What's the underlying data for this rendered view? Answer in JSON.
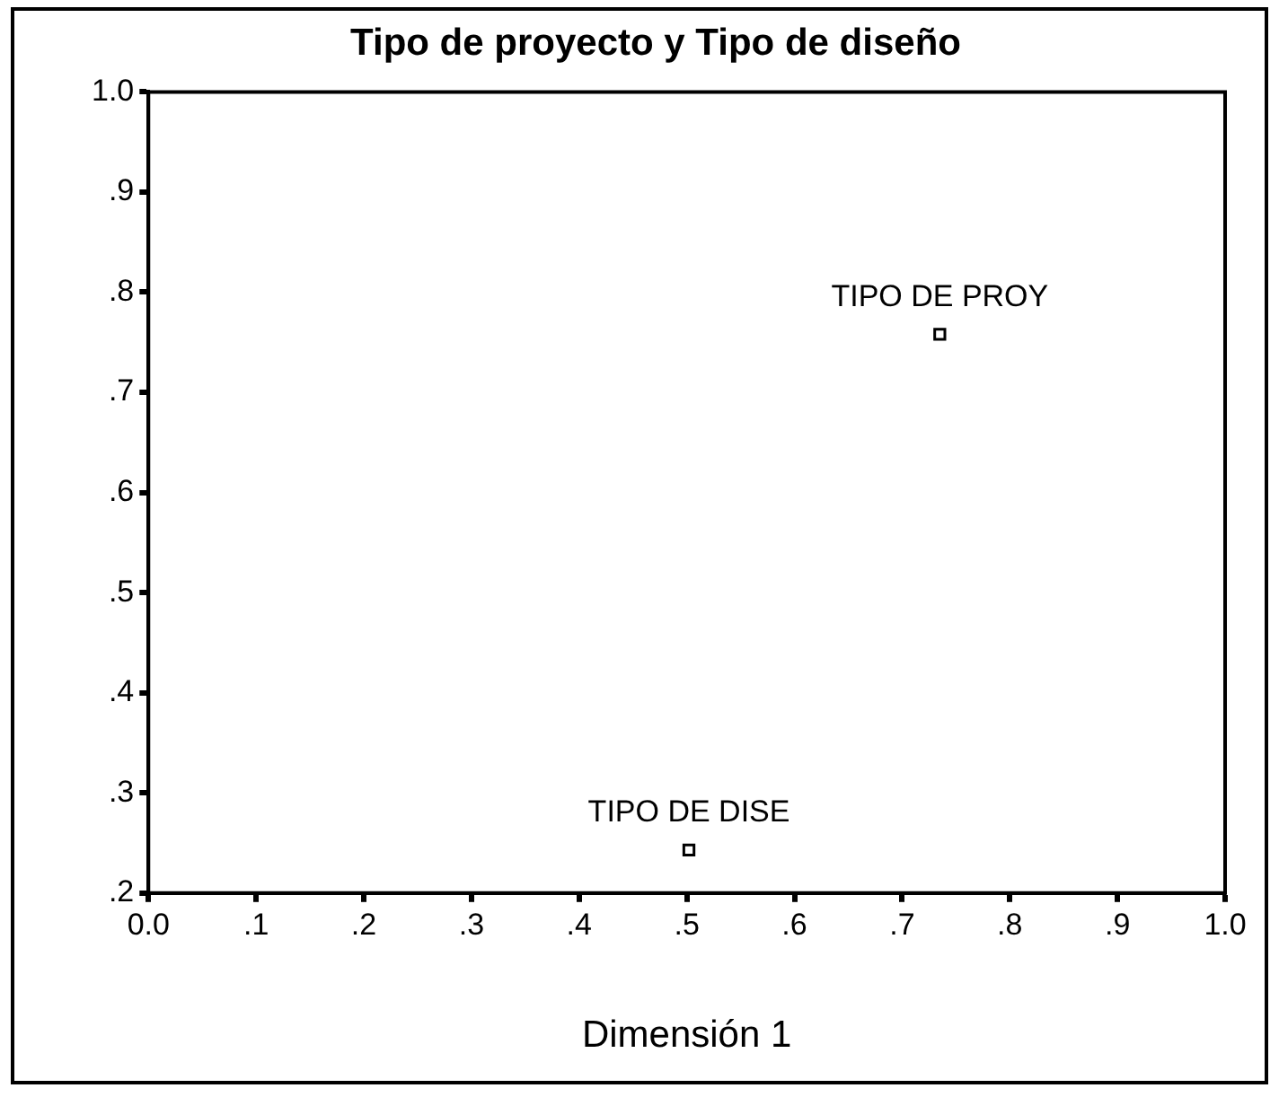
{
  "chart_data": {
    "type": "scatter",
    "title": "Tipo de proyecto y Tipo de diseño",
    "xlabel": "Dimensión 1",
    "series": [
      {
        "name": "TIPO DE PROY",
        "color": "#000000",
        "x": [
          0.735
        ],
        "values": [
          0.758
        ]
      },
      {
        "name": "TIPO DE DISE",
        "color": "#000000",
        "x": [
          0.502
        ],
        "values": [
          0.243
        ]
      }
    ],
    "xlim": [
      0,
      1
    ],
    "ylim": [
      0.2,
      1
    ],
    "xticks": [
      {
        "value": 0,
        "label": "0.0"
      },
      {
        "value": 0.1,
        "label": ".1"
      },
      {
        "value": 0.2,
        "label": ".2"
      },
      {
        "value": 0.3,
        "label": ".3"
      },
      {
        "value": 0.4,
        "label": ".4"
      },
      {
        "value": 0.5,
        "label": ".5"
      },
      {
        "value": 0.6,
        "label": ".6"
      },
      {
        "value": 0.7,
        "label": ".7"
      },
      {
        "value": 0.8,
        "label": ".8"
      },
      {
        "value": 0.9,
        "label": ".9"
      },
      {
        "value": 1,
        "label": "1.0"
      }
    ],
    "yticks": [
      {
        "value": 0.2,
        "label": ".2"
      },
      {
        "value": 0.3,
        "label": ".3"
      },
      {
        "value": 0.4,
        "label": ".4"
      },
      {
        "value": 0.5,
        "label": ".5"
      },
      {
        "value": 0.6,
        "label": ".6"
      },
      {
        "value": 0.7,
        "label": ".7"
      },
      {
        "value": 0.8,
        "label": ".8"
      },
      {
        "value": 0.9,
        "label": ".9"
      },
      {
        "value": 1,
        "label": "1.0"
      }
    ],
    "marker": "square",
    "grid": false,
    "legend": false
  }
}
